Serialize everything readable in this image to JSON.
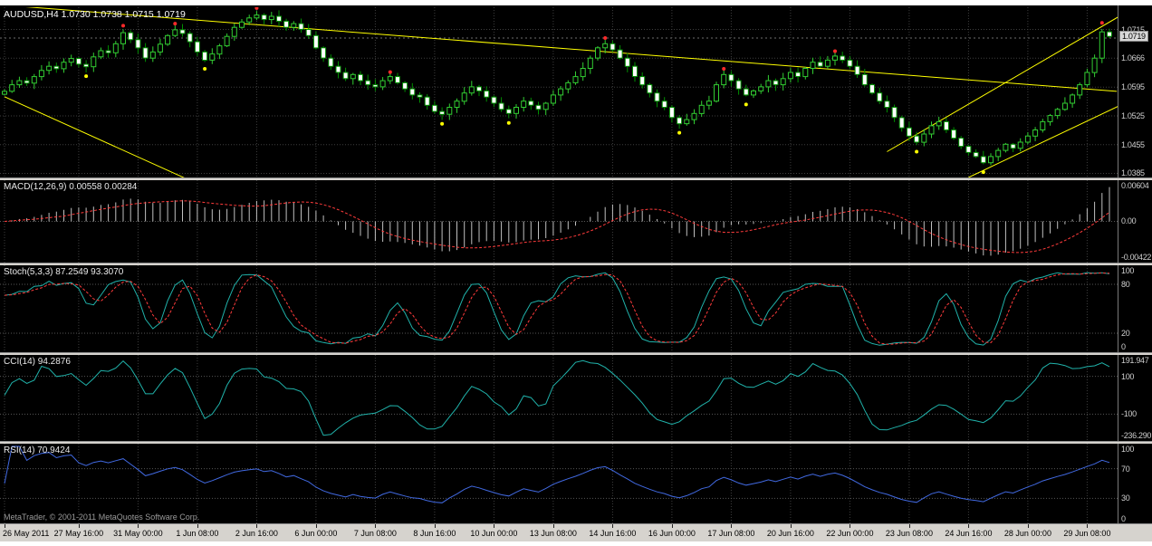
{
  "chart_data": {
    "type": "candlestick",
    "symbol": "AUDUSD",
    "timeframe": "H4",
    "main": {
      "title": "AUDUSD,H4 1.0730 1.0738 1.0715 1.0719",
      "open": "1.0730",
      "high": "1.0738",
      "low": "1.0715",
      "close": "1.0719",
      "bid_label": "1.0715",
      "bid_value": 1.0715,
      "last_label": "1.0719",
      "last_value": 1.0719,
      "y_range": [
        1.0375,
        1.079
      ],
      "grid_prices": [
        1.0736,
        1.0666,
        1.0595,
        1.0525,
        1.0455,
        1.0385
      ],
      "price_labels": [
        {
          "text": "1.0666",
          "value": 1.0666
        },
        {
          "text": "1.0595",
          "value": 1.0595
        },
        {
          "text": "1.0525",
          "value": 1.0525
        },
        {
          "text": "1.0455",
          "value": 1.0455
        },
        {
          "text": "1.0385",
          "value": 1.0385
        }
      ],
      "closes": [
        1.0585,
        1.0601,
        1.0611,
        1.0605,
        1.0621,
        1.0636,
        1.0646,
        1.064,
        1.0656,
        1.0665,
        1.0651,
        1.0645,
        1.0669,
        1.0684,
        1.0679,
        1.0701,
        1.0728,
        1.0711,
        1.0691,
        1.0666,
        1.0681,
        1.07,
        1.0721,
        1.0735,
        1.0726,
        1.0706,
        1.0681,
        1.0661,
        1.0676,
        1.0696,
        1.0719,
        1.0741,
        1.0754,
        1.0764,
        1.0771,
        1.076,
        1.0768,
        1.0756,
        1.0741,
        1.075,
        1.0736,
        1.0721,
        1.0691,
        1.0666,
        1.0646,
        1.0631,
        1.0616,
        1.0626,
        1.0611,
        1.0601,
        1.0596,
        1.0611,
        1.0621,
        1.0606,
        1.0591,
        1.0576,
        1.0571,
        1.0551,
        1.0536,
        1.0529,
        1.0546,
        1.0561,
        1.0581,
        1.0596,
        1.0586,
        1.0571,
        1.0556,
        1.0541,
        1.0531,
        1.0546,
        1.0561,
        1.0551,
        1.0541,
        1.0556,
        1.0576,
        1.0591,
        1.0606,
        1.0621,
        1.0641,
        1.0666,
        1.0691,
        1.0701,
        1.0686,
        1.0666,
        1.0646,
        1.0621,
        1.0601,
        1.0581,
        1.0561,
        1.0546,
        1.0521,
        1.0506,
        1.0516,
        1.0531,
        1.0551,
        1.0561,
        1.0601,
        1.0626,
        1.0611,
        1.0591,
        1.0576,
        1.0586,
        1.0596,
        1.0611,
        1.0601,
        1.0616,
        1.0631,
        1.0621,
        1.0641,
        1.0656,
        1.0646,
        1.0661,
        1.0671,
        1.0661,
        1.0646,
        1.0626,
        1.0601,
        1.0581,
        1.0561,
        1.0546,
        1.0521,
        1.0496,
        1.0476,
        1.0461,
        1.0481,
        1.0501,
        1.0511,
        1.0491,
        1.0471,
        1.0451,
        1.0436,
        1.0426,
        1.0411,
        1.0426,
        1.0441,
        1.0456,
        1.0446,
        1.0461,
        1.0476,
        1.0491,
        1.0511,
        1.0526,
        1.0541,
        1.0556,
        1.0576,
        1.0601,
        1.0631,
        1.0666,
        1.073,
        1.0719
      ],
      "trendlines": [
        {
          "x1": 0,
          "p1": 1.0795,
          "x2": 150,
          "p2": 1.0585
        },
        {
          "x1": 0,
          "p1": 1.0572,
          "x2": 25,
          "p2": 1.0368
        },
        {
          "x1": 119,
          "p1": 1.0438,
          "x2": 151,
          "p2": 1.0775
        },
        {
          "x1": 130,
          "p1": 1.0375,
          "x2": 155,
          "p2": 1.059
        }
      ],
      "dots_red": [
        [
          16,
          1.0745
        ],
        [
          23,
          1.075
        ],
        [
          34,
          1.0788
        ],
        [
          52,
          1.0632
        ],
        [
          81,
          1.0715
        ],
        [
          97,
          1.064
        ],
        [
          112,
          1.0683
        ],
        [
          148,
          1.0752
        ]
      ],
      "dots_yellow": [
        [
          11,
          1.0622
        ],
        [
          27,
          1.064
        ],
        [
          59,
          1.0506
        ],
        [
          68,
          1.0508
        ],
        [
          91,
          1.0484
        ],
        [
          100,
          1.0553
        ],
        [
          123,
          1.0438
        ],
        [
          132,
          1.0388
        ]
      ]
    },
    "x_axis": {
      "labels": [
        "26 May 2011",
        "27 May 16:00",
        "31 May 00:00",
        "1 Jun 08:00",
        "2 Jun 16:00",
        "6 Jun 00:00",
        "7 Jun 08:00",
        "8 Jun 16:00",
        "10 Jun 00:00",
        "13 Jun 08:00",
        "14 Jun 16:00",
        "16 Jun 00:00",
        "17 Jun 08:00",
        "20 Jun 16:00",
        "22 Jun 00:00",
        "23 Jun 08:00",
        "24 Jun 16:00",
        "28 Jun 00:00",
        "29 Jun 08:00"
      ],
      "label_bar_indices": [
        0,
        10,
        18,
        26,
        34,
        42,
        50,
        58,
        66,
        74,
        82,
        90,
        98,
        106,
        114,
        122,
        130,
        138,
        146
      ]
    },
    "indicators": {
      "macd": {
        "title": "MACD(12,26,9) 0.00558 0.00284",
        "fast": 12,
        "slow": 26,
        "signal": 9,
        "value_main": "0.00558",
        "value_signal": "0.00284",
        "scale_labels": [
          "0.00604",
          "0.00",
          "-0.00422"
        ]
      },
      "stoch": {
        "title": "Stoch(5,3,3) 87.2549 93.3070",
        "k": 5,
        "slowing": 3,
        "d": 3,
        "value_k": "87.2549",
        "value_d": "93.3070",
        "scale_labels": [
          "100",
          "80",
          "20",
          "0"
        ],
        "levels": [
          80,
          20
        ]
      },
      "cci": {
        "title": "CCI(14) 94.2876",
        "period": 14,
        "value": "94.2876",
        "scale_labels": [
          "191.947",
          "100",
          "-100",
          "-236.290"
        ],
        "levels": [
          100,
          -100
        ]
      },
      "rsi": {
        "title": "RSI(14) 70.9424",
        "period": 14,
        "value": "70.9424",
        "scale_labels": [
          "100",
          "70",
          "30",
          "0"
        ],
        "levels": [
          70,
          30
        ]
      }
    },
    "footer": {
      "copyright": "MetaTrader, © 2001-2011 MetaQuotes Software Corp."
    },
    "colors": {
      "background": "#000000",
      "grid": "#3e3e3e",
      "level": "#565656",
      "bull": "#32CD32",
      "bear": "#009000",
      "bull_fill": "#000000",
      "bear_fill": "#ffffff",
      "macd_histogram": "#C0C0C0",
      "signal_line": "#FF3B3B",
      "stoch_line": "#20B2AA",
      "cci_line": "#20B2AA",
      "rsi_line": "#4169E1",
      "trendline": "#FFFF00",
      "dot_red": "#FF2A2A",
      "dot_yellow": "#FFFF00",
      "time_axis_bg": "#D6D3CE",
      "scale_text": "#CFCFCF"
    }
  }
}
